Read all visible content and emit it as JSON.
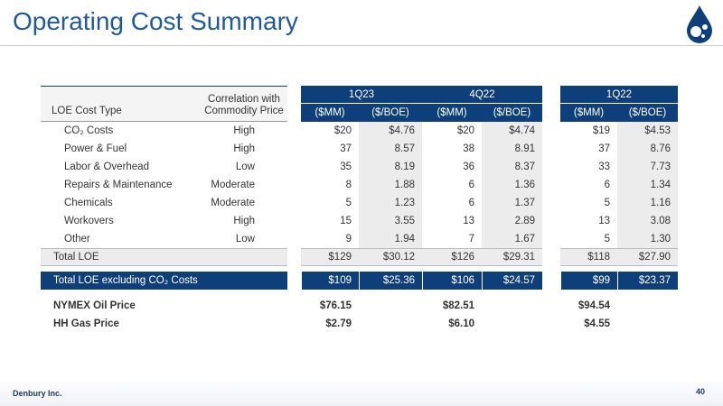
{
  "header": {
    "title": "Operating Cost Summary"
  },
  "table": {
    "group_headers": [
      "1Q23",
      "4Q22",
      "1Q22"
    ],
    "columns": [
      "LOE Cost Type",
      "Correlation with Commodity Price",
      "($MM)",
      "($/BOE)",
      "($MM)",
      "($/BOE)",
      "($MM)",
      "($/BOE)"
    ],
    "rows": [
      [
        "CO₂ Costs",
        "High",
        "$20",
        "$4.76",
        "$20",
        "$4.74",
        "$19",
        "$4.53"
      ],
      [
        "Power & Fuel",
        "High",
        "37",
        "8.57",
        "38",
        "8.91",
        "37",
        "8.76"
      ],
      [
        "Labor & Overhead",
        "Low",
        "35",
        "8.19",
        "36",
        "8.37",
        "33",
        "7.73"
      ],
      [
        "Repairs & Maintenance",
        "Moderate",
        "8",
        "1.88",
        "6",
        "1.36",
        "6",
        "1.34"
      ],
      [
        "Chemicals",
        "Moderate",
        "5",
        "1.23",
        "6",
        "1.37",
        "5",
        "1.16"
      ],
      [
        "Workovers",
        "High",
        "15",
        "3.55",
        "13",
        "2.89",
        "13",
        "3.08"
      ],
      [
        "Other",
        "Low",
        "9",
        "1.94",
        "7",
        "1.67",
        "5",
        "1.30"
      ]
    ],
    "total_row": [
      "Total LOE",
      "$129",
      "$30.12",
      "$126",
      "$29.31",
      "$118",
      "$27.90"
    ],
    "total_excl_row": [
      "Total LOE excluding CO₂ Costs",
      "$109",
      "$25.36",
      "$106",
      "$24.57",
      "$99",
      "$23.37"
    ],
    "price_rows": [
      [
        "NYMEX Oil Price",
        "$76.15",
        "$82.51",
        "$94.54"
      ],
      [
        "HH Gas Price",
        "$2.79",
        "$6.10",
        "$4.55"
      ]
    ]
  },
  "footer": {
    "company": "Denbury Inc.",
    "page": "40"
  }
}
